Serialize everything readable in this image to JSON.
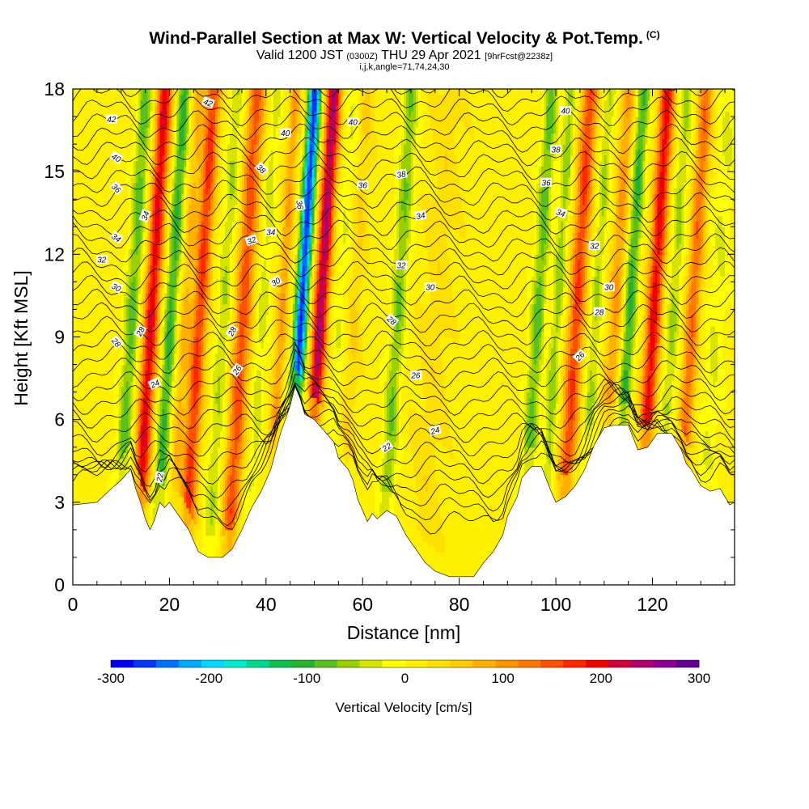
{
  "title": {
    "main": "Wind-Parallel Section at Max W: Vertical Velocity & Pot.Temp.",
    "copyright": "(C)",
    "valid_prefix": "Valid 1200 JST",
    "valid_utc": "(0300Z)",
    "valid_date": "THU 29 Apr 2021",
    "forecast": "[9hrFcst@2238z]",
    "indices": "i,j,k,angle=71,74,24,30"
  },
  "chart_data": {
    "type": "heatmap",
    "xlabel": "Distance [nm]",
    "ylabel": "Height [Kft MSL]",
    "xlim": [
      0,
      137
    ],
    "ylim": [
      0,
      18
    ],
    "x_ticks": [
      "0",
      "20",
      "40",
      "60",
      "80",
      "100",
      "120"
    ],
    "x_tick_values": [
      0,
      20,
      40,
      60,
      80,
      100,
      120
    ],
    "y_ticks": [
      "0",
      "3",
      "6",
      "9",
      "12",
      "15",
      "18"
    ],
    "y_tick_values": [
      0,
      3,
      6,
      9,
      12,
      15,
      18
    ],
    "colorbar": {
      "title": "Vertical Velocity [cm/s]",
      "range": [
        -300,
        300
      ],
      "labels": [
        "-300",
        "-200",
        "-100",
        "0",
        "100",
        "200",
        "300"
      ],
      "label_values": [
        -300,
        -200,
        -100,
        0,
        100,
        200,
        300
      ],
      "colors": [
        "#0000f0",
        "#0038f5",
        "#0070fa",
        "#00a8ff",
        "#00d8ff",
        "#00eccc",
        "#00d890",
        "#10c050",
        "#28b030",
        "#58c020",
        "#98d000",
        "#d8e400",
        "#ffff00",
        "#fff000",
        "#ffe000",
        "#ffcc00",
        "#ffb000",
        "#ff9600",
        "#ff7800",
        "#ff5000",
        "#ff2800",
        "#f00000",
        "#d0003c",
        "#b00070",
        "#8c0090",
        "#600090"
      ]
    },
    "terrain_kft": [
      [
        0,
        2.9
      ],
      [
        5,
        3.0
      ],
      [
        8,
        3.5
      ],
      [
        10,
        3.8
      ],
      [
        12,
        4.2
      ],
      [
        13,
        3.5
      ],
      [
        14,
        3.0
      ],
      [
        15,
        2.4
      ],
      [
        16,
        2.0
      ],
      [
        17,
        2.4
      ],
      [
        18,
        3.0
      ],
      [
        19,
        2.8
      ],
      [
        20,
        3.0
      ],
      [
        22,
        2.5
      ],
      [
        24,
        2.0
      ],
      [
        26,
        1.2
      ],
      [
        28,
        1.0
      ],
      [
        31,
        1.0
      ],
      [
        33,
        1.3
      ],
      [
        35,
        2.0
      ],
      [
        37,
        2.8
      ],
      [
        39,
        3.4
      ],
      [
        41,
        4.2
      ],
      [
        43,
        5.5
      ],
      [
        44,
        6.0
      ],
      [
        45,
        6.5
      ],
      [
        46,
        7.2
      ],
      [
        47,
        6.8
      ],
      [
        48,
        6.2
      ],
      [
        50,
        6.0
      ],
      [
        52,
        5.6
      ],
      [
        54,
        5.2
      ],
      [
        55,
        4.6
      ],
      [
        57,
        4.2
      ],
      [
        58,
        3.8
      ],
      [
        59,
        3.1
      ],
      [
        60,
        2.7
      ],
      [
        61,
        2.3
      ],
      [
        62,
        2.6
      ],
      [
        63,
        2.4
      ],
      [
        65,
        2.7
      ],
      [
        67,
        2.5
      ],
      [
        69,
        1.8
      ],
      [
        71,
        1.3
      ],
      [
        73,
        0.8
      ],
      [
        75,
        0.5
      ],
      [
        78,
        0.3
      ],
      [
        83,
        0.3
      ],
      [
        85,
        0.8
      ],
      [
        87,
        1.2
      ],
      [
        89,
        1.8
      ],
      [
        90,
        2.5
      ],
      [
        92,
        3.2
      ],
      [
        93,
        3.9
      ],
      [
        95,
        4.3
      ],
      [
        97,
        4.3
      ],
      [
        99,
        3.4
      ],
      [
        100,
        3.0
      ],
      [
        102,
        3.2
      ],
      [
        104,
        3.6
      ],
      [
        106,
        4.2
      ],
      [
        108,
        5.1
      ],
      [
        110,
        5.7
      ],
      [
        112,
        5.8
      ],
      [
        115,
        5.8
      ],
      [
        117,
        4.9
      ],
      [
        119,
        5.0
      ],
      [
        121,
        5.5
      ],
      [
        124,
        5.5
      ],
      [
        126,
        4.9
      ],
      [
        127,
        4.4
      ],
      [
        128,
        4.2
      ],
      [
        130,
        3.6
      ],
      [
        132,
        3.4
      ],
      [
        134,
        3.5
      ],
      [
        136,
        2.9
      ],
      [
        137,
        3.0
      ]
    ],
    "theta_contours": [
      {
        "label": "22",
        "x": 18,
        "y": 3.9,
        "rot": -80
      },
      {
        "label": "22",
        "x": 65,
        "y": 5.0,
        "rot": -35
      },
      {
        "label": "24",
        "x": 17,
        "y": 7.3,
        "rot": -25
      },
      {
        "label": "24",
        "x": 75,
        "y": 5.6,
        "rot": -15
      },
      {
        "label": "26",
        "x": 34,
        "y": 7.8,
        "rot": -55
      },
      {
        "label": "26",
        "x": 71,
        "y": 7.6,
        "rot": 0
      },
      {
        "label": "26",
        "x": 105,
        "y": 8.3,
        "rot": -45
      },
      {
        "label": "28",
        "x": 9,
        "y": 8.8,
        "rot": 50
      },
      {
        "label": "28",
        "x": 14,
        "y": 9.2,
        "rot": -60
      },
      {
        "label": "28",
        "x": 33,
        "y": 9.2,
        "rot": -60
      },
      {
        "label": "28",
        "x": 66,
        "y": 9.6,
        "rot": 40
      },
      {
        "label": "28",
        "x": 109,
        "y": 9.9,
        "rot": 0
      },
      {
        "label": "30",
        "x": 9,
        "y": 10.8,
        "rot": 30
      },
      {
        "label": "30",
        "x": 42,
        "y": 11.0,
        "rot": -30
      },
      {
        "label": "30",
        "x": 74,
        "y": 10.8,
        "rot": 0
      },
      {
        "label": "30",
        "x": 111,
        "y": 10.8,
        "rot": 0
      },
      {
        "label": "32",
        "x": 6,
        "y": 11.8,
        "rot": 0
      },
      {
        "label": "32",
        "x": 37,
        "y": 12.5,
        "rot": -20
      },
      {
        "label": "32",
        "x": 68,
        "y": 11.6,
        "rot": 0
      },
      {
        "label": "32",
        "x": 108,
        "y": 12.3,
        "rot": 0
      },
      {
        "label": "34",
        "x": 9,
        "y": 12.6,
        "rot": 35
      },
      {
        "label": "34",
        "x": 15,
        "y": 13.4,
        "rot": -70
      },
      {
        "label": "34",
        "x": 41,
        "y": 12.8,
        "rot": 0
      },
      {
        "label": "34",
        "x": 72,
        "y": 13.4,
        "rot": -10
      },
      {
        "label": "34",
        "x": 101,
        "y": 13.5,
        "rot": 20
      },
      {
        "label": "36",
        "x": 9,
        "y": 14.4,
        "rot": 45
      },
      {
        "label": "36",
        "x": 47,
        "y": 13.8,
        "rot": 80
      },
      {
        "label": "36",
        "x": 60,
        "y": 14.5,
        "rot": 0
      },
      {
        "label": "36",
        "x": 98,
        "y": 14.6,
        "rot": 0
      },
      {
        "label": "38",
        "x": 39,
        "y": 15.1,
        "rot": 45
      },
      {
        "label": "38",
        "x": 68,
        "y": 14.9,
        "rot": -10
      },
      {
        "label": "38",
        "x": 100,
        "y": 15.8,
        "rot": 0
      },
      {
        "label": "40",
        "x": 9,
        "y": 15.5,
        "rot": 30
      },
      {
        "label": "40",
        "x": 44,
        "y": 16.4,
        "rot": 0
      },
      {
        "label": "40",
        "x": 58,
        "y": 16.8,
        "rot": 0
      },
      {
        "label": "40",
        "x": 102,
        "y": 17.2,
        "rot": 0
      },
      {
        "label": "42",
        "x": 8,
        "y": 16.9,
        "rot": 0
      },
      {
        "label": "42",
        "x": 28,
        "y": 17.5,
        "rot": 20
      }
    ]
  }
}
